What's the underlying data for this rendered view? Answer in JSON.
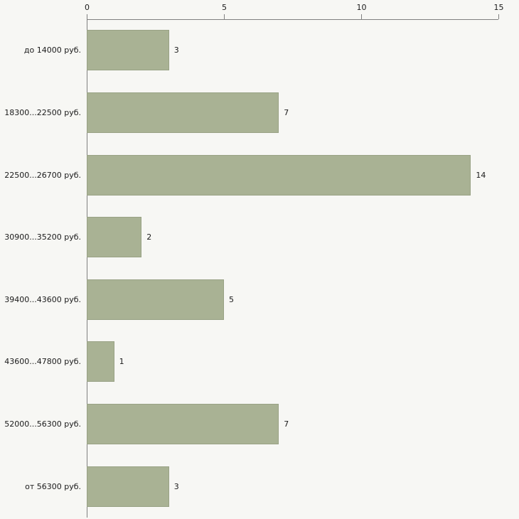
{
  "chart_data": {
    "type": "bar",
    "orientation": "horizontal",
    "title": "",
    "xlabel": "",
    "ylabel": "",
    "categories": [
      "до 14000 руб.",
      "18300...22500 руб.",
      "22500...26700 руб.",
      "30900...35200 руб.",
      "39400...43600 руб.",
      "43600...47800 руб.",
      "52000...56300 руб.",
      "от 56300 руб."
    ],
    "values": [
      3,
      7,
      14,
      2,
      5,
      1,
      7,
      3
    ],
    "x_ticks": [
      0,
      5,
      10,
      15
    ],
    "xlim": [
      0,
      15
    ],
    "grid": "off",
    "legend": "none",
    "colors": {
      "bar_fill": "#a9b294",
      "bar_border": "#99a285",
      "background": "#f7f7f4",
      "axis": "#808080",
      "text": "#1a1a1a"
    }
  }
}
